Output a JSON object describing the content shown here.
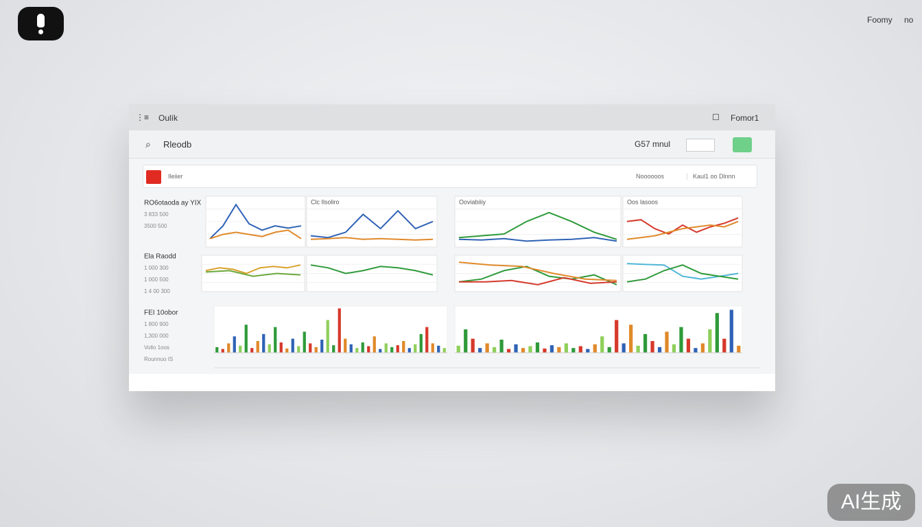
{
  "header": {
    "corner_left": "Foomy",
    "corner_right": "no"
  },
  "window": {
    "title": "Oulík",
    "account": "Fomor1",
    "search": "Rleodb",
    "counter": "G57 mnul",
    "tab": "Ileiier",
    "tab_right": "Noooooos",
    "tab_right2": "Kaul1 oo Dlnnn"
  },
  "rows": [
    {
      "label": "RO6otaoda ay YIX",
      "sub_labels": [
        "3 833 500",
        "3500 500"
      ]
    },
    {
      "label": "Ela Raodd",
      "sub_labels": [
        "1 000 300",
        "1 000 500",
        "1 4 00 300"
      ]
    },
    {
      "label": "FEI 10obor",
      "sub_labels": [
        "1 800 900",
        "1,300 000",
        "Vollo 1oos",
        "Rounnuo IS"
      ]
    }
  ],
  "panels": [
    {
      "ylim": [
        0,
        100
      ],
      "series": [
        {
          "color": "#2f62b5",
          "values": [
            10,
            40,
            90,
            45,
            30,
            40,
            35,
            40
          ]
        },
        {
          "color": "#e0892a",
          "values": [
            10,
            20,
            25,
            20,
            15,
            25,
            30,
            10
          ]
        }
      ]
    },
    {
      "title": "Clc Ilsoliro",
      "ylim": [
        0,
        100
      ],
      "series": [
        {
          "color": "#2f62b5",
          "values": [
            20,
            15,
            30,
            80,
            40,
            90,
            40,
            60
          ]
        },
        {
          "color": "#e0892a",
          "values": [
            10,
            12,
            15,
            10,
            12,
            10,
            8,
            10
          ]
        }
      ]
    },
    {
      "title": "Ooviabiiiy",
      "ylim": [
        0,
        100
      ],
      "series": [
        {
          "color": "#2f9a3a",
          "values": [
            15,
            20,
            25,
            60,
            85,
            60,
            30,
            10
          ]
        },
        {
          "color": "#2f62b5",
          "values": [
            10,
            8,
            12,
            5,
            8,
            10,
            15,
            5
          ]
        }
      ]
    },
    {
      "title": "Oos lasoos",
      "ylim": [
        0,
        100
      ],
      "series": [
        {
          "color": "#d6392b",
          "values": [
            60,
            65,
            40,
            25,
            50,
            30,
            45,
            55,
            70
          ]
        },
        {
          "color": "#e0892a",
          "values": [
            10,
            15,
            20,
            30,
            40,
            45,
            50,
            45,
            60
          ]
        }
      ]
    },
    {
      "ylim": [
        0,
        100
      ],
      "series": [
        {
          "color": "#d9a02a",
          "values": [
            60,
            70,
            65,
            50,
            70,
            75,
            70,
            80
          ]
        },
        {
          "color": "#6aa83a",
          "values": [
            55,
            60,
            40,
            50,
            45
          ]
        }
      ]
    },
    {
      "ylim": [
        0,
        100
      ],
      "series": [
        {
          "color": "#2f9a3a",
          "values": [
            80,
            70,
            50,
            60,
            75,
            70,
            60,
            45
          ]
        }
      ]
    },
    {
      "ylim": [
        0,
        100
      ],
      "series": [
        {
          "color": "#2f9a3a",
          "values": [
            20,
            30,
            60,
            75,
            40,
            30,
            45,
            10
          ]
        },
        {
          "color": "#d6392b",
          "values": [
            20,
            20,
            25,
            10,
            35,
            15,
            20
          ]
        },
        {
          "color": "#e0892a",
          "values": [
            90,
            80,
            75,
            50,
            30,
            25
          ]
        }
      ]
    },
    {
      "ylim": [
        0,
        100
      ],
      "series": [
        {
          "color": "#4fb6d8",
          "values": [
            85,
            82,
            80,
            40,
            30,
            40,
            50
          ]
        },
        {
          "color": "#2f9a3a",
          "values": [
            20,
            30,
            60,
            80,
            50,
            40,
            30
          ]
        }
      ]
    }
  ],
  "bar_panels": [
    {
      "ylim": [
        0,
        100
      ],
      "colors": [
        "#2f9a3a",
        "#d6392b",
        "#e0892a",
        "#2f62b5",
        "#8fcf5a"
      ],
      "values": [
        12,
        8,
        20,
        35,
        15,
        60,
        10,
        25,
        40,
        18,
        55,
        22,
        9,
        30,
        14,
        45,
        20,
        12,
        28,
        70,
        16,
        95,
        30,
        18,
        10,
        22,
        14,
        35,
        8,
        20,
        12,
        16,
        25,
        10,
        18,
        40,
        55,
        20,
        15,
        10
      ]
    },
    {
      "ylim": [
        0,
        100
      ],
      "colors": [
        "#8fcf5a",
        "#2f9a3a",
        "#d6392b",
        "#2f62b5",
        "#e0892a"
      ],
      "values": [
        15,
        50,
        30,
        10,
        20,
        12,
        28,
        8,
        18,
        10,
        14,
        22,
        9,
        16,
        12,
        20,
        10,
        14,
        8,
        18,
        35,
        12,
        70,
        20,
        60,
        15,
        40,
        25,
        12,
        45,
        18,
        55,
        30,
        10,
        20,
        50,
        85,
        30,
        92,
        15
      ]
    }
  ],
  "watermark": "AI生成"
}
